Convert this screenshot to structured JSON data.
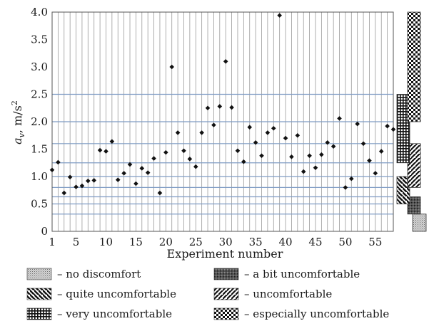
{
  "chart_data": {
    "type": "scatter",
    "xlabel": "Experiment number",
    "ylabel_symbol": "a",
    "ylabel_subscript": "v",
    "ylabel_unit": ", m/s",
    "ylabel_power": "2",
    "x_ticks": [
      1,
      5,
      10,
      15,
      20,
      25,
      30,
      35,
      40,
      45,
      50,
      55
    ],
    "y_ticks": [
      "0",
      "0.5",
      "1.0",
      "1.5",
      "2.0",
      "2.5",
      "3.0",
      "3.5",
      "4.0"
    ],
    "xlim": [
      1,
      58
    ],
    "ylim": [
      0,
      4.0
    ],
    "comfort_lines": [
      0.315,
      0.5,
      0.63,
      0.8,
      1.0,
      1.25,
      1.6,
      2.0,
      2.5
    ],
    "points": [
      [
        1,
        1.12
      ],
      [
        2,
        1.26
      ],
      [
        3,
        0.7
      ],
      [
        4,
        0.99
      ],
      [
        5,
        0.81
      ],
      [
        6,
        0.83
      ],
      [
        7,
        0.92
      ],
      [
        8,
        0.93
      ],
      [
        9,
        1.48
      ],
      [
        10,
        1.46
      ],
      [
        11,
        1.64
      ],
      [
        12,
        0.94
      ],
      [
        13,
        1.06
      ],
      [
        14,
        1.22
      ],
      [
        15,
        0.87
      ],
      [
        16,
        1.15
      ],
      [
        17,
        1.07
      ],
      [
        18,
        1.33
      ],
      [
        19,
        0.7
      ],
      [
        20,
        1.44
      ],
      [
        21,
        3.0
      ],
      [
        22,
        1.8
      ],
      [
        23,
        1.47
      ],
      [
        24,
        1.32
      ],
      [
        25,
        1.18
      ],
      [
        26,
        1.8
      ],
      [
        27,
        2.25
      ],
      [
        28,
        1.94
      ],
      [
        29,
        2.28
      ],
      [
        30,
        3.1
      ],
      [
        31,
        2.26
      ],
      [
        32,
        1.47
      ],
      [
        33,
        1.27
      ],
      [
        34,
        1.9
      ],
      [
        35,
        1.62
      ],
      [
        36,
        1.38
      ],
      [
        37,
        1.8
      ],
      [
        38,
        1.88
      ],
      [
        39,
        3.94
      ],
      [
        40,
        1.7
      ],
      [
        41,
        1.36
      ],
      [
        42,
        1.75
      ],
      [
        43,
        1.09
      ],
      [
        44,
        1.38
      ],
      [
        45,
        1.16
      ],
      [
        46,
        1.4
      ],
      [
        47,
        1.62
      ],
      [
        48,
        1.55
      ],
      [
        49,
        2.06
      ],
      [
        50,
        0.8
      ],
      [
        51,
        0.96
      ],
      [
        52,
        1.96
      ],
      [
        53,
        1.6
      ],
      [
        54,
        1.29
      ],
      [
        55,
        1.06
      ],
      [
        56,
        1.46
      ],
      [
        57,
        1.92
      ],
      [
        58,
        1.86
      ]
    ],
    "comfort_bands": [
      {
        "pattern": "no-discomfort",
        "from": 0.0,
        "to": 0.315
      },
      {
        "pattern": "bit-uncomfortable",
        "from": 0.315,
        "to": 0.63
      },
      {
        "pattern": "quite-uncomfortable",
        "from": 0.5,
        "to": 1.0
      },
      {
        "pattern": "uncomfortable",
        "from": 0.8,
        "to": 1.6
      },
      {
        "pattern": "very-uncomfortable",
        "from": 1.25,
        "to": 2.5
      },
      {
        "pattern": "especially-uncomfortable",
        "from": 2.0,
        "to": 4.0
      }
    ],
    "legend": [
      {
        "pattern": "no-discomfort",
        "label": "– no discomfort"
      },
      {
        "pattern": "bit-uncomfortable",
        "label": "– a bit uncomfortable"
      },
      {
        "pattern": "quite-uncomfortable",
        "label": "– quite uncomfortable"
      },
      {
        "pattern": "uncomfortable",
        "label": "– uncomfortable"
      },
      {
        "pattern": "very-uncomfortable",
        "label": "– very uncomfortable"
      },
      {
        "pattern": "especially-uncomfortable",
        "label": "– especially uncomfortable"
      }
    ],
    "colors": {
      "vertical_grid": "#9a9a9a",
      "comfort_line": "#7f9cc4",
      "marker": "#111111",
      "text": "#1a1a1a"
    }
  }
}
